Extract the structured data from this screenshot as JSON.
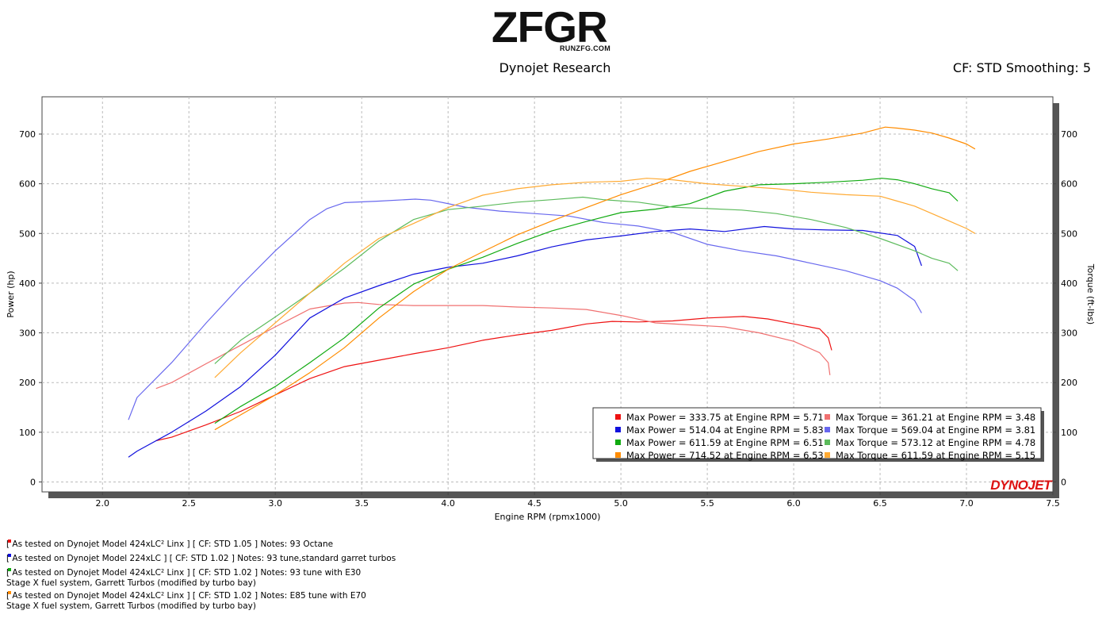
{
  "logo": {
    "word": "ZFGR",
    "sub": "RUNZFG.COM"
  },
  "header": {
    "title": "Dynojet Research",
    "correction": "CF: STD Smoothing: 5"
  },
  "chart_data": {
    "type": "line",
    "xlabel": "Engine RPM (rpmx1000)",
    "ylabel": "Power (hp)",
    "y2label": "Torque (ft-lbs)",
    "xlim": [
      1.65,
      7.5
    ],
    "ylim": [
      -20,
      775
    ],
    "x_ticks": [
      "2.0",
      "2.5",
      "3.0",
      "3.5",
      "4.0",
      "4.5",
      "5.0",
      "5.5",
      "6.0",
      "6.5",
      "7.0",
      "7.5"
    ],
    "y_ticks": [
      "0",
      "100",
      "200",
      "300",
      "400",
      "500",
      "600",
      "700"
    ],
    "grid": true,
    "legend_placement": "bottom-right",
    "series": [
      {
        "label": "Max Power = 333.75 at Engine RPM = 5.71",
        "kind": "power",
        "color": "#ee1111",
        "x": [
          2.31,
          2.4,
          2.6,
          2.8,
          3.0,
          3.2,
          3.4,
          3.6,
          3.8,
          4.0,
          4.2,
          4.4,
          4.6,
          4.8,
          4.95,
          5.1,
          5.3,
          5.5,
          5.71,
          5.85,
          6.0,
          6.15,
          6.2,
          6.22
        ],
        "y": [
          83,
          90,
          115,
          142,
          175,
          208,
          232,
          245,
          258,
          270,
          285,
          296,
          305,
          318,
          323,
          322,
          324,
          330,
          333,
          328,
          318,
          308,
          290,
          265
        ]
      },
      {
        "label": "Max Torque = 361.21 at Engine RPM = 3.48",
        "kind": "torque",
        "color": "#f07070",
        "x": [
          2.31,
          2.4,
          2.6,
          2.8,
          3.0,
          3.2,
          3.4,
          3.48,
          3.6,
          3.8,
          4.0,
          4.2,
          4.4,
          4.6,
          4.8,
          5.0,
          5.2,
          5.4,
          5.6,
          5.8,
          6.0,
          6.15,
          6.2,
          6.21
        ],
        "y": [
          188,
          200,
          238,
          275,
          312,
          348,
          360,
          361,
          357,
          355,
          355,
          355,
          352,
          350,
          347,
          335,
          320,
          316,
          312,
          300,
          283,
          260,
          240,
          215
        ]
      },
      {
        "label": "Max Power = 514.04 at Engine RPM = 5.83",
        "kind": "power",
        "color": "#1111dd",
        "x": [
          2.15,
          2.2,
          2.4,
          2.6,
          2.8,
          3.0,
          3.2,
          3.4,
          3.6,
          3.8,
          4.0,
          4.2,
          4.4,
          4.6,
          4.8,
          5.0,
          5.2,
          5.4,
          5.6,
          5.83,
          6.0,
          6.2,
          6.4,
          6.6,
          6.7,
          6.74
        ],
        "y": [
          50,
          62,
          100,
          143,
          192,
          255,
          330,
          370,
          395,
          418,
          432,
          440,
          455,
          473,
          487,
          495,
          504,
          509,
          504,
          514,
          509,
          507,
          506,
          496,
          474,
          435
        ]
      },
      {
        "label": "Max Torque = 569.04 at Engine RPM = 3.81",
        "kind": "torque",
        "color": "#6868ee",
        "x": [
          2.15,
          2.2,
          2.4,
          2.6,
          2.8,
          3.0,
          3.2,
          3.3,
          3.4,
          3.6,
          3.81,
          3.9,
          4.1,
          4.3,
          4.5,
          4.7,
          4.9,
          5.1,
          5.3,
          5.5,
          5.7,
          5.9,
          6.1,
          6.3,
          6.5,
          6.6,
          6.7,
          6.74
        ],
        "y": [
          125,
          170,
          240,
          320,
          395,
          465,
          528,
          550,
          562,
          565,
          569,
          567,
          553,
          545,
          540,
          535,
          522,
          515,
          502,
          478,
          465,
          455,
          440,
          425,
          405,
          390,
          365,
          340
        ]
      },
      {
        "label": "Max Power = 611.59 at Engine RPM = 6.51",
        "kind": "power",
        "color": "#11aa11",
        "x": [
          2.65,
          2.8,
          3.0,
          3.2,
          3.4,
          3.6,
          3.8,
          4.0,
          4.2,
          4.4,
          4.6,
          4.8,
          5.0,
          5.2,
          5.4,
          5.6,
          5.8,
          6.0,
          6.2,
          6.4,
          6.51,
          6.6,
          6.7,
          6.8,
          6.9,
          6.95
        ],
        "y": [
          118,
          152,
          192,
          240,
          290,
          350,
          398,
          428,
          452,
          480,
          505,
          524,
          542,
          549,
          560,
          585,
          598,
          600,
          603,
          607,
          611,
          608,
          600,
          590,
          582,
          565
        ]
      },
      {
        "label": "Max Torque = 573.12 at Engine RPM = 4.78",
        "kind": "torque",
        "color": "#5cbb5c",
        "x": [
          2.65,
          2.8,
          3.0,
          3.2,
          3.4,
          3.6,
          3.8,
          4.0,
          4.2,
          4.4,
          4.6,
          4.78,
          4.9,
          5.1,
          5.3,
          5.5,
          5.7,
          5.9,
          6.1,
          6.3,
          6.5,
          6.7,
          6.8,
          6.9,
          6.95
        ],
        "y": [
          238,
          285,
          332,
          380,
          430,
          485,
          528,
          548,
          555,
          563,
          568,
          573,
          568,
          563,
          553,
          550,
          547,
          540,
          528,
          512,
          490,
          465,
          450,
          440,
          425
        ]
      },
      {
        "label": "Max Power = 714.52 at Engine RPM = 6.53",
        "kind": "power",
        "color": "#ff8c00",
        "x": [
          2.65,
          2.8,
          3.0,
          3.2,
          3.4,
          3.6,
          3.8,
          4.0,
          4.2,
          4.4,
          4.6,
          4.8,
          5.0,
          5.2,
          5.4,
          5.6,
          5.8,
          6.0,
          6.2,
          6.4,
          6.53,
          6.6,
          6.7,
          6.8,
          6.9,
          7.0,
          7.05
        ],
        "y": [
          105,
          135,
          175,
          220,
          270,
          330,
          383,
          428,
          463,
          497,
          525,
          552,
          578,
          600,
          625,
          645,
          665,
          680,
          690,
          702,
          714,
          712,
          708,
          702,
          692,
          680,
          670
        ]
      },
      {
        "label": "Max Torque = 611.59 at Engine RPM = 5.15",
        "kind": "torque",
        "color": "#ffaa33",
        "x": [
          2.65,
          2.8,
          3.0,
          3.2,
          3.4,
          3.6,
          3.8,
          4.0,
          4.2,
          4.4,
          4.6,
          4.8,
          5.0,
          5.15,
          5.3,
          5.5,
          5.7,
          5.9,
          6.1,
          6.3,
          6.5,
          6.6,
          6.7,
          6.8,
          6.9,
          7.0,
          7.05
        ],
        "y": [
          210,
          260,
          320,
          380,
          440,
          490,
          520,
          552,
          577,
          590,
          598,
          603,
          605,
          611,
          608,
          600,
          595,
          590,
          583,
          578,
          575,
          565,
          555,
          540,
          525,
          510,
          500
        ]
      }
    ]
  },
  "legend_order": [
    0,
    1,
    2,
    3,
    4,
    5,
    6,
    7
  ],
  "footer": {
    "lines": [
      {
        "color": "#ee1111",
        "text": "[ As tested on Dynojet Model 424xLC² Linx ] [ CF: STD 1.05 ] Notes: 93 Octane",
        "note": ""
      },
      {
        "color": "#1111dd",
        "text": "[ As tested on Dynojet Model 224xLC ] [ CF: STD 1.02 ] Notes: 93 tune,standard garret turbos",
        "note": ""
      },
      {
        "color": "#11aa11",
        "text": "[ As tested on Dynojet Model 424xLC² Linx ] [ CF: STD 1.02 ] Notes: 93 tune with E30",
        "note": "Stage X fuel system, Garrett Turbos (modified by turbo bay)"
      },
      {
        "color": "#ff8c00",
        "text": "[ As tested on Dynojet Model 424xLC² Linx ] [ CF: STD 1.02 ] Notes: E85 tune with E70",
        "note": "Stage X fuel system, Garrett Turbos (modified by turbo bay)"
      }
    ]
  },
  "brand": {
    "dynojet": "DYNOJET"
  }
}
